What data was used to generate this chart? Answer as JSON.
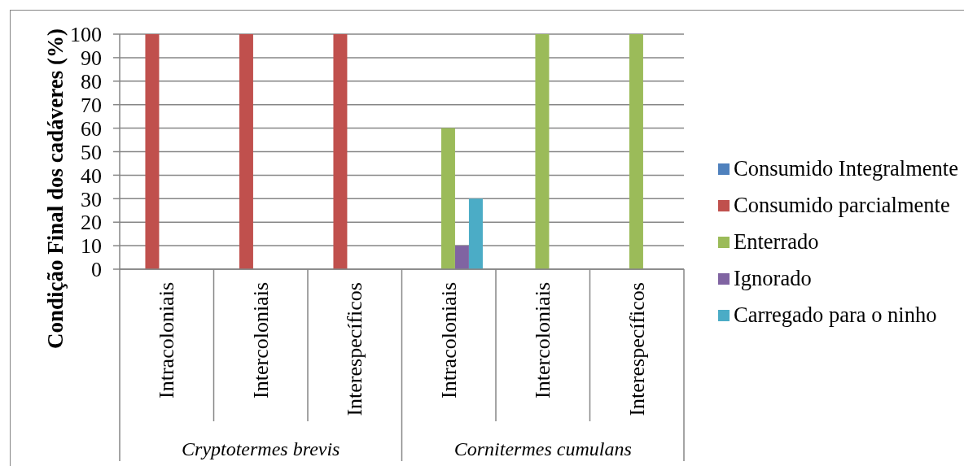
{
  "chart_data": {
    "type": "bar",
    "ylabel": "Condição Final dos cadáveres (%)",
    "categories": [
      "Intracoloniais",
      "Intercoloniais",
      "Interespecíficos",
      "Intracoloniais",
      "Intercoloniais",
      "Interespecíficos"
    ],
    "annotations": [
      "Cryptotermes brevis",
      "Cornitermes cumulans"
    ],
    "series": [
      {
        "name": "Consumido Integralmente",
        "color": "#4f81bd",
        "values": [
          0,
          0,
          0,
          0,
          0,
          0
        ]
      },
      {
        "name": "Consumido parcialmente",
        "color": "#c0504d",
        "values": [
          100,
          100,
          100,
          0,
          0,
          0
        ]
      },
      {
        "name": "Enterrado",
        "color": "#9bbb59",
        "values": [
          0,
          0,
          0,
          60,
          100,
          100
        ]
      },
      {
        "name": "Ignorado",
        "color": "#8064a2",
        "values": [
          0,
          0,
          0,
          10,
          0,
          0
        ]
      },
      {
        "name": "Carregado para o ninho",
        "color": "#4bacc6",
        "values": [
          0,
          0,
          0,
          30,
          0,
          0
        ]
      }
    ],
    "ylim": [
      0,
      100
    ],
    "yticks": [
      0,
      10,
      20,
      30,
      40,
      50,
      60,
      70,
      80,
      90,
      100
    ],
    "grid": "y",
    "legend": "right"
  }
}
